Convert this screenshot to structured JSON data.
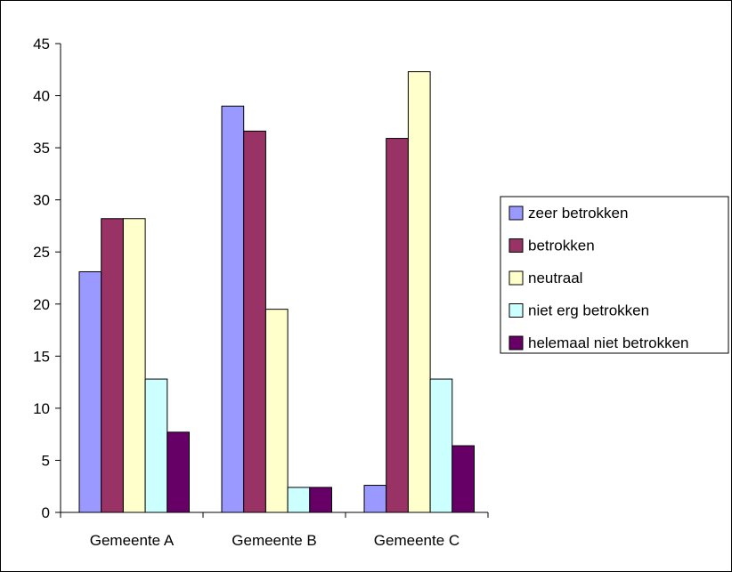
{
  "chart_data": {
    "type": "bar",
    "categories": [
      "Gemeente A",
      "Gemeente B",
      "Gemeente C"
    ],
    "series": [
      {
        "name": "zeer betrokken",
        "color": "#9999ff",
        "values": [
          23.1,
          39.0,
          2.6
        ]
      },
      {
        "name": "betrokken",
        "color": "#993366",
        "values": [
          28.2,
          36.6,
          35.9
        ]
      },
      {
        "name": "neutraal",
        "color": "#ffffcc",
        "values": [
          28.2,
          19.5,
          42.3
        ]
      },
      {
        "name": "niet erg betrokken",
        "color": "#ccffff",
        "values": [
          12.8,
          2.4,
          12.8
        ]
      },
      {
        "name": "helemaal niet betrokken",
        "color": "#660066",
        "values": [
          7.7,
          2.4,
          6.4
        ]
      }
    ],
    "ylim": [
      0,
      45
    ],
    "yticks": [
      0,
      5,
      10,
      15,
      20,
      25,
      30,
      35,
      40,
      45
    ],
    "grid": false,
    "legend_position": "right",
    "title": "",
    "xlabel": "",
    "ylabel": ""
  }
}
